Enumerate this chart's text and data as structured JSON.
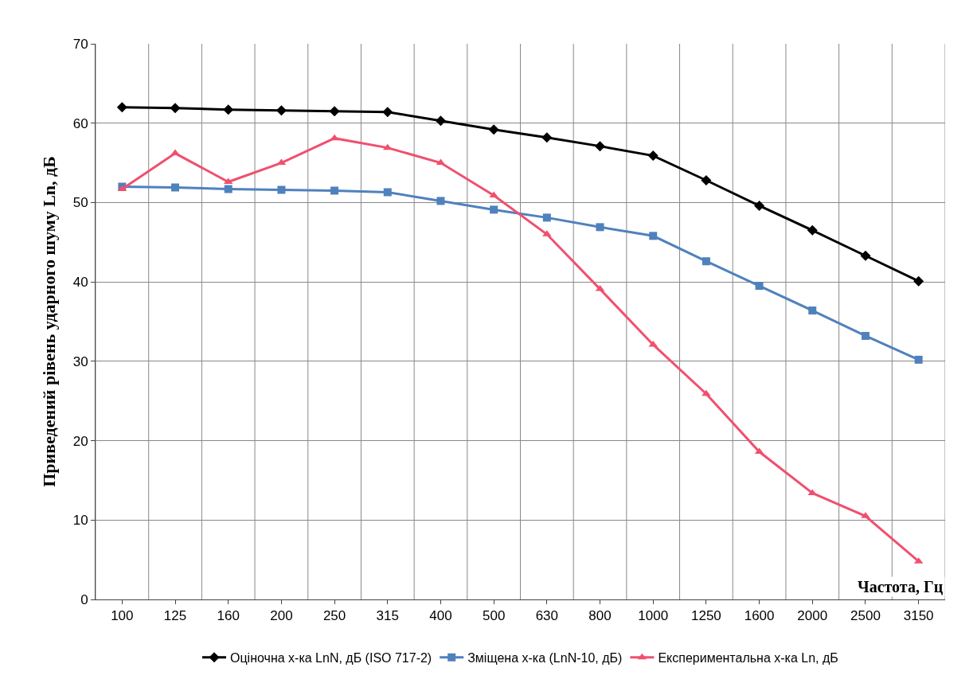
{
  "chart_data": {
    "type": "line",
    "xlabel": "Частота, Гц",
    "ylabel": "Приведений рівень ударного шуму Ln, дБ",
    "categories": [
      "100",
      "125",
      "160",
      "200",
      "250",
      "315",
      "400",
      "500",
      "630",
      "800",
      "1000",
      "1250",
      "1600",
      "2000",
      "2500",
      "3150"
    ],
    "series": [
      {
        "name": "Оціночна х-ка LnN, дБ (ISO 717-2)",
        "color": "#000000",
        "marker": "diamond",
        "values": [
          62,
          61.9,
          61.7,
          61.6,
          61.5,
          61.4,
          60.3,
          59.2,
          58.2,
          57.1,
          55.9,
          52.8,
          49.6,
          46.5,
          43.3,
          40.1
        ]
      },
      {
        "name": "Зміщена х-ка (LnN-10, дБ)",
        "color": "#4f81bd",
        "marker": "square",
        "values": [
          52,
          51.9,
          51.7,
          51.6,
          51.5,
          51.3,
          50.2,
          49.1,
          48.1,
          46.9,
          45.8,
          42.6,
          39.5,
          36.4,
          33.2,
          30.2
        ]
      },
      {
        "name": "Експериментальна х-ка Ln, дБ",
        "color": "#f0506e",
        "marker": "triangle",
        "values": [
          51.7,
          56.2,
          52.6,
          55,
          58.1,
          56.9,
          55,
          50.9,
          46,
          39.1,
          32.1,
          25.9,
          18.6,
          13.4,
          10.5,
          4.8
        ]
      }
    ],
    "ylim": [
      0,
      70
    ],
    "yticks": [
      0,
      10,
      20,
      30,
      40,
      50,
      60,
      70
    ],
    "grid": true,
    "legend": "bottom"
  }
}
